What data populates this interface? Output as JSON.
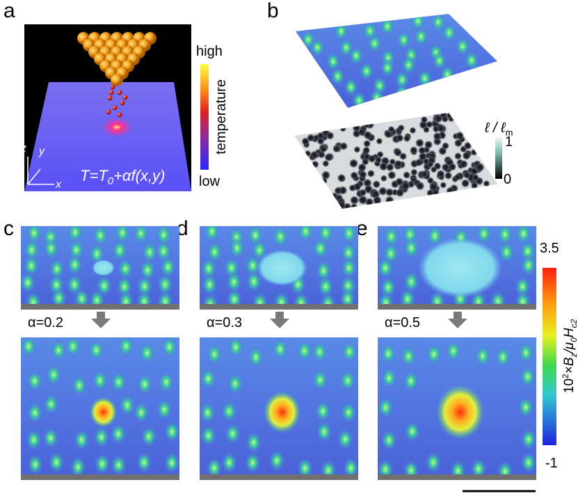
{
  "panels": {
    "a": {
      "label": "a",
      "colorbar": {
        "high": "high",
        "low": "low",
        "title": "temperature"
      },
      "axes": {
        "z": "z",
        "y": "y",
        "x": "x"
      },
      "equation": [
        "T=T",
        "0",
        "+αf(x,y)"
      ]
    },
    "b": {
      "label": "b",
      "colorbar": {
        "title": [
          "ℓ / ℓ",
          "m"
        ],
        "max": "1",
        "min": "0"
      }
    },
    "c": {
      "label": "c",
      "alpha": "α=0.2"
    },
    "d": {
      "label": "d",
      "alpha": "α=0.3"
    },
    "e": {
      "label": "e",
      "alpha": "α=0.5"
    }
  },
  "colorbar": {
    "max": "3.5",
    "min": "-1",
    "title": [
      "10",
      "2",
      "×B",
      "z",
      "/μ",
      "0",
      "H",
      "c2"
    ]
  }
}
